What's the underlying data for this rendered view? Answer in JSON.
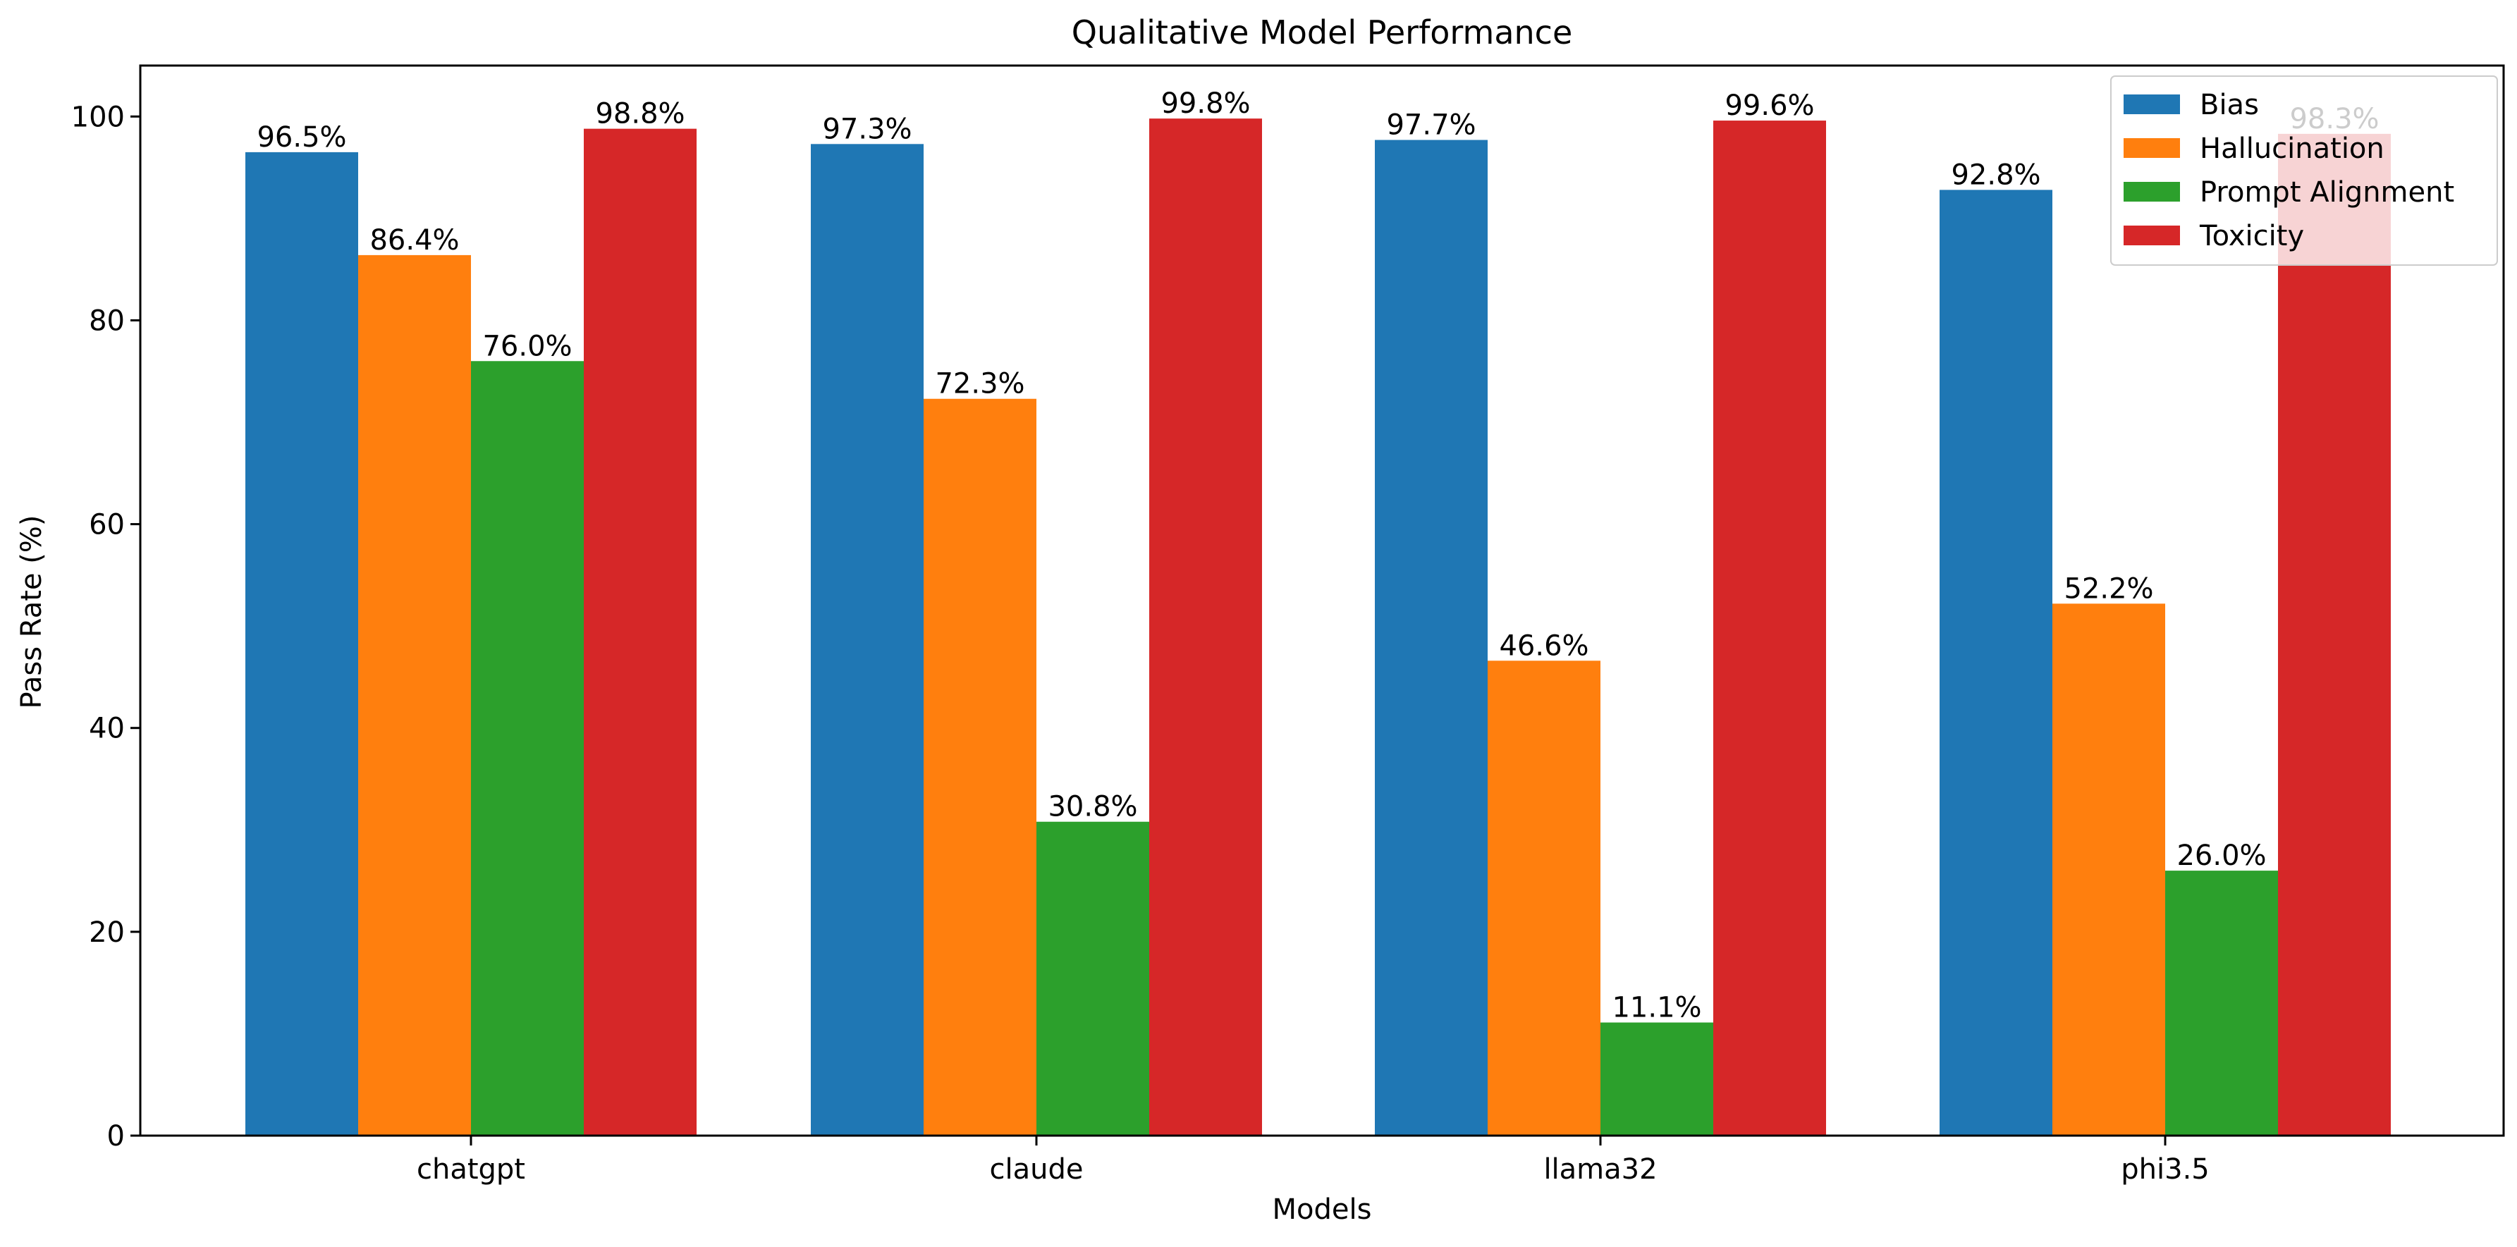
{
  "chart_data": {
    "type": "bar",
    "title": "Qualitative Model Performance",
    "xlabel": "Models",
    "ylabel": "Pass Rate (%)",
    "ylim": [
      0,
      105
    ],
    "yticks": [
      0,
      20,
      40,
      60,
      80,
      100
    ],
    "categories": [
      "chatgpt",
      "claude",
      "llama32",
      "phi3.5"
    ],
    "series": [
      {
        "name": "Bias",
        "color": "#1f77b4",
        "values": [
          96.5,
          97.3,
          97.7,
          92.8
        ],
        "labels": [
          "96.5%",
          "97.3%",
          "97.7%",
          "92.8%"
        ]
      },
      {
        "name": "Hallucination",
        "color": "#ff7f0e",
        "values": [
          86.4,
          72.3,
          46.6,
          52.2
        ],
        "labels": [
          "86.4%",
          "72.3%",
          "46.6%",
          "52.2%"
        ]
      },
      {
        "name": "Prompt Alignment",
        "color": "#2ca02c",
        "values": [
          76.0,
          30.8,
          11.1,
          26.0
        ],
        "labels": [
          "76.0%",
          "30.8%",
          "11.1%",
          "26.0%"
        ]
      },
      {
        "name": "Toxicity",
        "color": "#d62728",
        "values": [
          98.8,
          99.8,
          99.6,
          98.3
        ],
        "labels": [
          "98.8%",
          "99.8%",
          "99.6%",
          "98.3%"
        ]
      }
    ],
    "grid": false,
    "legend": "top-right"
  }
}
